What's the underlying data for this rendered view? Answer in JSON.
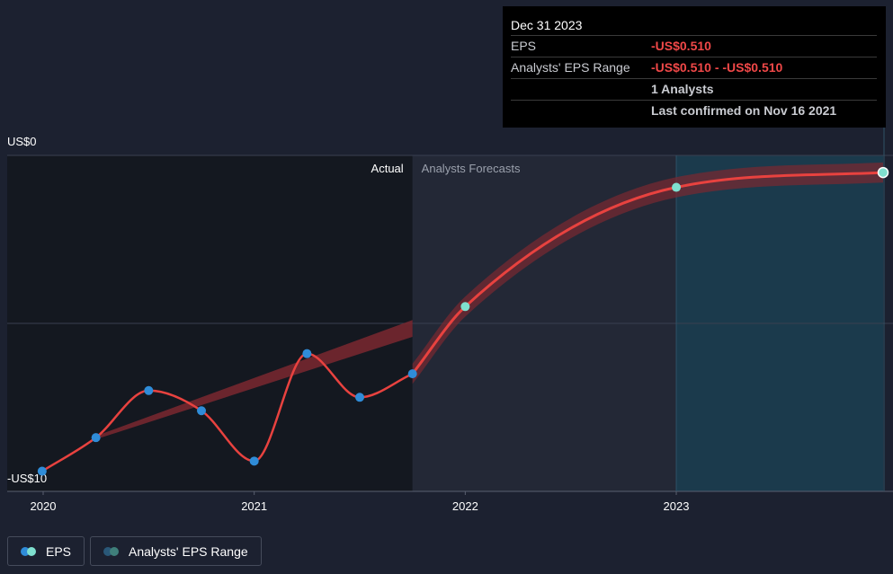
{
  "chart_data": {
    "type": "line",
    "y_axis": {
      "top_label": "US$0",
      "bottom_label": "-US$10",
      "range": [
        -10,
        0
      ],
      "unit": "US$"
    },
    "x_axis": {
      "ticks": [
        "2020",
        "2021",
        "2022",
        "2023"
      ],
      "range": [
        2020,
        2023.98
      ]
    },
    "sections": {
      "actual_label": "Actual",
      "forecast_label": "Analysts Forecasts",
      "forecast_start": 2021.75
    },
    "series": [
      {
        "name": "EPS",
        "kind": "actual",
        "points": [
          {
            "x": 2019.995,
            "y": -9.4
          },
          {
            "x": 2020.25,
            "y": -8.4
          },
          {
            "x": 2020.5,
            "y": -7.0
          },
          {
            "x": 2020.75,
            "y": -7.6
          },
          {
            "x": 2021.0,
            "y": -9.1
          },
          {
            "x": 2021.25,
            "y": -5.9
          },
          {
            "x": 2021.5,
            "y": -7.2
          },
          {
            "x": 2021.75,
            "y": -6.5
          }
        ]
      },
      {
        "name": "EPS",
        "kind": "forecast",
        "points": [
          {
            "x": 2021.75,
            "y": -6.5
          },
          {
            "x": 2022.0,
            "y": -4.5
          },
          {
            "x": 2023.0,
            "y": -0.95
          },
          {
            "x": 2023.98,
            "y": -0.51
          }
        ]
      }
    ],
    "trend_band": {
      "start": {
        "x": 2020.25,
        "y_low": -8.45,
        "y_high": -8.35
      },
      "end": {
        "x": 2021.75,
        "y_low": -5.4,
        "y_high": -4.9
      }
    },
    "forecast_band_halfwidth": 0.3,
    "highlight_start": 2023.0,
    "colors": {
      "background": "#1c2130",
      "actual_shade": "#141820",
      "forecast_shade": "#232836",
      "highlight": "#1b3a4c",
      "line": "#e8423f",
      "band": "#7a2830",
      "actual_point": "#2f8cd8",
      "forecast_point": "#7fe0cf",
      "grid": "#3a4050"
    }
  },
  "tooltip": {
    "title": "Dec 31 2023",
    "eps_label": "EPS",
    "eps_value": "-US$0.510",
    "range_label": "Analysts' EPS Range",
    "range_value": "-US$0.510 - -US$0.510",
    "analysts": "1 Analysts",
    "confirmed": "Last confirmed on Nov 16 2021"
  },
  "legend": {
    "eps_label": "EPS",
    "range_label": "Analysts' EPS Range",
    "eps_dot_colors": [
      "#2f8cd8",
      "#7fe0cf"
    ],
    "range_dot_colors": [
      "#2a5878",
      "#3f7f7a"
    ]
  }
}
